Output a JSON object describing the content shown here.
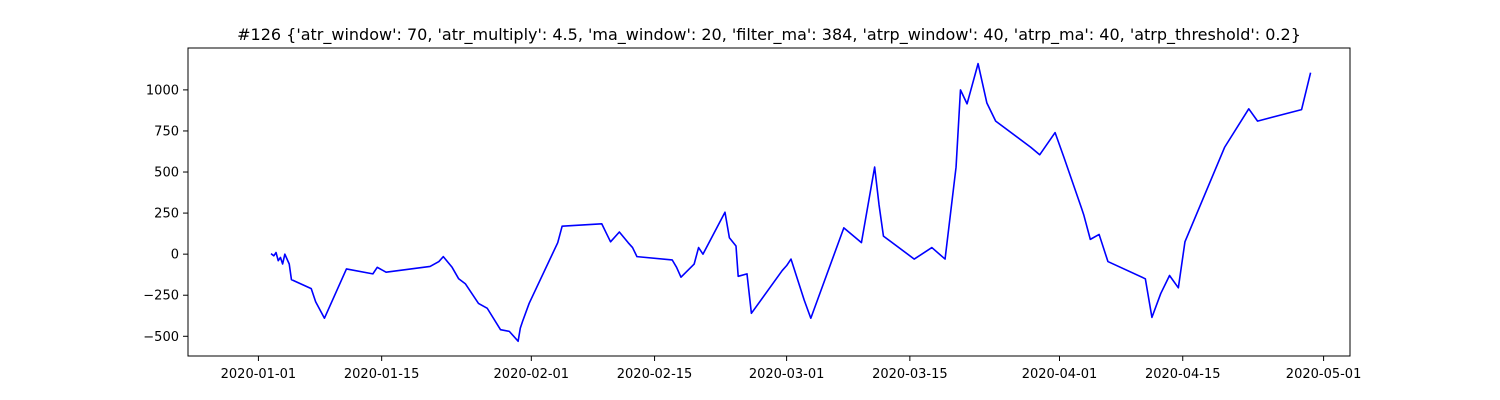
{
  "chart_data": {
    "type": "line",
    "title": "#126 {'atr_window': 70, 'atr_multiply': 4.5, 'ma_window': 20, 'filter_ma': 384, 'atrp_window': 40, 'atrp_ma': 40, 'atrp_threshold': 0.2}",
    "xlabel": "",
    "ylabel": "",
    "x_axis_type": "date",
    "xlim": [
      "2019-12-24",
      "2020-05-04"
    ],
    "ylim": [
      -620,
      1255
    ],
    "grid": false,
    "legend": "none",
    "x_ticks": [
      "2020-01-01",
      "2020-01-15",
      "2020-02-01",
      "2020-02-15",
      "2020-03-01",
      "2020-03-15",
      "2020-04-01",
      "2020-04-15",
      "2020-05-01"
    ],
    "y_ticks": [
      -500,
      -250,
      0,
      250,
      500,
      750,
      1000
    ],
    "y_tick_labels": [
      "−500",
      "−250",
      "0",
      "250",
      "500",
      "750",
      "1000"
    ],
    "series": [
      {
        "color": "#0000ff",
        "points": [
          [
            "2020-01-02 12:00",
            0
          ],
          [
            "2020-01-02 18:00",
            -10
          ],
          [
            "2020-01-03 00:00",
            10
          ],
          [
            "2020-01-03 06:00",
            -40
          ],
          [
            "2020-01-03 12:00",
            -20
          ],
          [
            "2020-01-03 18:00",
            -60
          ],
          [
            "2020-01-04 00:00",
            0
          ],
          [
            "2020-01-04 12:00",
            -60
          ],
          [
            "2020-01-04 18:00",
            -155
          ],
          [
            "2020-01-07 00:00",
            -210
          ],
          [
            "2020-01-07 12:00",
            -290
          ],
          [
            "2020-01-08 12:00",
            -390
          ],
          [
            "2020-01-11 00:00",
            -90
          ],
          [
            "2020-01-14 00:00",
            -120
          ],
          [
            "2020-01-14 12:00",
            -80
          ],
          [
            "2020-01-15 12:00",
            -110
          ],
          [
            "2020-01-20 12:00",
            -75
          ],
          [
            "2020-01-21 12:00",
            -45
          ],
          [
            "2020-01-22 00:00",
            -15
          ],
          [
            "2020-01-23 00:00",
            -80
          ],
          [
            "2020-01-23 18:00",
            -150
          ],
          [
            "2020-01-24 12:00",
            -180
          ],
          [
            "2020-01-26 00:00",
            -300
          ],
          [
            "2020-01-27 00:00",
            -330
          ],
          [
            "2020-01-28 12:00",
            -460
          ],
          [
            "2020-01-29 12:00",
            -470
          ],
          [
            "2020-01-30 12:00",
            -530
          ],
          [
            "2020-01-30 18:00",
            -450
          ],
          [
            "2020-01-31 00:00",
            -410
          ],
          [
            "2020-01-31 18:00",
            -300
          ],
          [
            "2020-02-04 00:00",
            70
          ],
          [
            "2020-02-04 12:00",
            170
          ],
          [
            "2020-02-09 00:00",
            185
          ],
          [
            "2020-02-09 12:00",
            130
          ],
          [
            "2020-02-10 00:00",
            75
          ],
          [
            "2020-02-11 00:00",
            135
          ],
          [
            "2020-02-12 00:00",
            70
          ],
          [
            "2020-02-12 12:00",
            40
          ],
          [
            "2020-02-13 00:00",
            -15
          ],
          [
            "2020-02-17 00:00",
            -35
          ],
          [
            "2020-02-17 12:00",
            -80
          ],
          [
            "2020-02-18 00:00",
            -140
          ],
          [
            "2020-02-19 12:00",
            -60
          ],
          [
            "2020-02-20 00:00",
            40
          ],
          [
            "2020-02-20 12:00",
            0
          ],
          [
            "2020-02-23 00:00",
            255
          ],
          [
            "2020-02-23 12:00",
            100
          ],
          [
            "2020-02-24 06:00",
            50
          ],
          [
            "2020-02-24 12:00",
            -135
          ],
          [
            "2020-02-25 12:00",
            -120
          ],
          [
            "2020-02-26 00:00",
            -360
          ],
          [
            "2020-02-29 12:00",
            -100
          ],
          [
            "2020-03-01 00:00",
            -70
          ],
          [
            "2020-03-01 12:00",
            -30
          ],
          [
            "2020-03-03 00:00",
            -280
          ],
          [
            "2020-03-03 18:00",
            -390
          ],
          [
            "2020-03-07 12:00",
            160
          ],
          [
            "2020-03-09 12:00",
            70
          ],
          [
            "2020-03-11 00:00",
            530
          ],
          [
            "2020-03-11 12:00",
            300
          ],
          [
            "2020-03-12 00:00",
            110
          ],
          [
            "2020-03-15 12:00",
            -30
          ],
          [
            "2020-03-17 12:00",
            40
          ],
          [
            "2020-03-19 00:00",
            -30
          ],
          [
            "2020-03-20 06:00",
            530
          ],
          [
            "2020-03-20 18:00",
            1000
          ],
          [
            "2020-03-21 12:00",
            915
          ],
          [
            "2020-03-22 18:00",
            1160
          ],
          [
            "2020-03-23 18:00",
            920
          ],
          [
            "2020-03-24 18:00",
            810
          ],
          [
            "2020-03-28 18:00",
            650
          ],
          [
            "2020-03-29 18:00",
            605
          ],
          [
            "2020-03-31 12:00",
            740
          ],
          [
            "2020-04-01 12:00",
            590
          ],
          [
            "2020-04-03 12:00",
            280
          ],
          [
            "2020-04-03 18:00",
            240
          ],
          [
            "2020-04-04 12:00",
            90
          ],
          [
            "2020-04-05 12:00",
            120
          ],
          [
            "2020-04-06 12:00",
            -45
          ],
          [
            "2020-04-10 18:00",
            -150
          ],
          [
            "2020-04-11 12:00",
            -385
          ],
          [
            "2020-04-12 12:00",
            -240
          ],
          [
            "2020-04-13 12:00",
            -130
          ],
          [
            "2020-04-14 12:00",
            -205
          ],
          [
            "2020-04-15 06:00",
            75
          ],
          [
            "2020-04-19 18:00",
            650
          ],
          [
            "2020-04-22 12:00",
            885
          ],
          [
            "2020-04-23 12:00",
            810
          ],
          [
            "2020-04-28 12:00",
            880
          ],
          [
            "2020-04-29 12:00",
            1100
          ]
        ]
      }
    ]
  }
}
